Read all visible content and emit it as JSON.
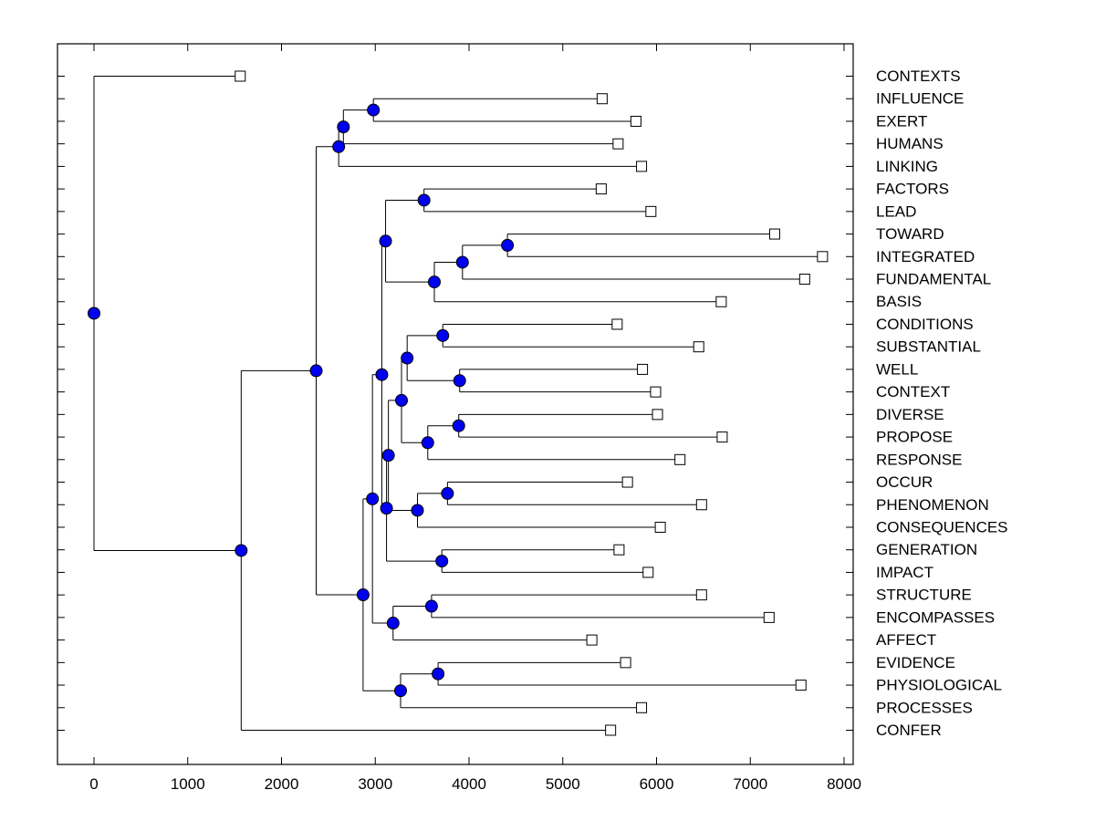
{
  "figure": {
    "background": "#ffffff",
    "axis_color": "#000000",
    "line_color": "#000000",
    "node_marker": {
      "shape": "circle",
      "fill": "#0000f0",
      "stroke": "#000000",
      "radius": 6.5
    },
    "leaf_marker": {
      "shape": "square",
      "fill": "#ffffff",
      "stroke": "#000000",
      "size": 11
    }
  },
  "chart_data": {
    "type": "dendrogram",
    "orientation": "horizontal-left-root",
    "title": "",
    "xlabel": "",
    "ylabel": "",
    "grid": false,
    "xlim": [
      -390,
      8100
    ],
    "x_ticks": [
      0,
      1000,
      2000,
      3000,
      4000,
      5000,
      6000,
      7000,
      8000
    ],
    "x_tick_labels": [
      "0",
      "1000",
      "2000",
      "3000",
      "4000",
      "5000",
      "6000",
      "7000",
      "8000"
    ],
    "leaves": [
      {
        "label": "CONTEXTS",
        "x": 1560
      },
      {
        "label": "INFLUENCE",
        "x": 5420
      },
      {
        "label": "EXERT",
        "x": 5780
      },
      {
        "label": "HUMANS",
        "x": 5590
      },
      {
        "label": "LINKING",
        "x": 5840
      },
      {
        "label": "FACTORS",
        "x": 5410
      },
      {
        "label": "LEAD",
        "x": 5940
      },
      {
        "label": "TOWARD",
        "x": 7260
      },
      {
        "label": "INTEGRATED",
        "x": 7770
      },
      {
        "label": "FUNDAMENTAL",
        "x": 7580
      },
      {
        "label": "BASIS",
        "x": 6690
      },
      {
        "label": "CONDITIONS",
        "x": 5580
      },
      {
        "label": "SUBSTANTIAL",
        "x": 6450
      },
      {
        "label": "WELL",
        "x": 5850
      },
      {
        "label": "CONTEXT",
        "x": 5990
      },
      {
        "label": "DIVERSE",
        "x": 6010
      },
      {
        "label": "PROPOSE",
        "x": 6700
      },
      {
        "label": "RESPONSE",
        "x": 6250
      },
      {
        "label": "OCCUR",
        "x": 5690
      },
      {
        "label": "PHENOMENON",
        "x": 6480
      },
      {
        "label": "CONSEQUENCES",
        "x": 6040
      },
      {
        "label": "GENERATION",
        "x": 5600
      },
      {
        "label": "IMPACT",
        "x": 5910
      },
      {
        "label": "STRUCTURE",
        "x": 6480
      },
      {
        "label": "ENCOMPASSES",
        "x": 7200
      },
      {
        "label": "AFFECT",
        "x": 5310
      },
      {
        "label": "EVIDENCE",
        "x": 5670
      },
      {
        "label": "PHYSIOLOGICAL",
        "x": 7540
      },
      {
        "label": "PROCESSES",
        "x": 5840
      },
      {
        "label": "CONFER",
        "x": 5510
      }
    ],
    "internal_nodes": [
      {
        "id": "n_influence_exert",
        "x": 2980,
        "children": [
          "INFLUENCE",
          "EXERT"
        ]
      },
      {
        "id": "n_humans",
        "x": 2660,
        "children": [
          "n_influence_exert",
          "HUMANS"
        ]
      },
      {
        "id": "n_linking",
        "x": 2610,
        "children": [
          "n_humans",
          "LINKING"
        ]
      },
      {
        "id": "n_factors_lead",
        "x": 3520,
        "children": [
          "FACTORS",
          "LEAD"
        ]
      },
      {
        "id": "n_toward_integrated",
        "x": 4410,
        "children": [
          "TOWARD",
          "INTEGRATED"
        ]
      },
      {
        "id": "n_fundamental",
        "x": 3930,
        "children": [
          "n_toward_integrated",
          "FUNDAMENTAL"
        ]
      },
      {
        "id": "n_basis",
        "x": 3630,
        "children": [
          "n_fundamental",
          "BASIS"
        ]
      },
      {
        "id": "n_factors_basis",
        "x": 3110,
        "children": [
          "n_factors_lead",
          "n_basis"
        ]
      },
      {
        "id": "n_conditions_substantial",
        "x": 3720,
        "children": [
          "CONDITIONS",
          "SUBSTANTIAL"
        ]
      },
      {
        "id": "n_well_context",
        "x": 3900,
        "children": [
          "WELL",
          "CONTEXT"
        ]
      },
      {
        "id": "n_cond_context",
        "x": 3340,
        "children": [
          "n_conditions_substantial",
          "n_well_context"
        ]
      },
      {
        "id": "n_diverse_propose",
        "x": 3890,
        "children": [
          "DIVERSE",
          "PROPOSE"
        ]
      },
      {
        "id": "n_response",
        "x": 3560,
        "children": [
          "n_diverse_propose",
          "RESPONSE"
        ]
      },
      {
        "id": "n_cond_response",
        "x": 3280,
        "children": [
          "n_cond_context",
          "n_response"
        ]
      },
      {
        "id": "n_occur_phenomenon",
        "x": 3770,
        "children": [
          "OCCUR",
          "PHENOMENON"
        ]
      },
      {
        "id": "n_consequences",
        "x": 3450,
        "children": [
          "n_occur_phenomenon",
          "CONSEQUENCES"
        ]
      },
      {
        "id": "n_cond_consequences",
        "x": 3140,
        "children": [
          "n_cond_response",
          "n_consequences"
        ]
      },
      {
        "id": "n_generation_impact",
        "x": 3710,
        "children": [
          "GENERATION",
          "IMPACT"
        ]
      },
      {
        "id": "n_cond_impact",
        "x": 3120,
        "children": [
          "n_cond_consequences",
          "n_generation_impact"
        ]
      },
      {
        "id": "n_factors_impact",
        "x": 3070,
        "children": [
          "n_factors_basis",
          "n_cond_impact"
        ]
      },
      {
        "id": "n_structure_encompasses",
        "x": 3600,
        "children": [
          "STRUCTURE",
          "ENCOMPASSES"
        ]
      },
      {
        "id": "n_affect",
        "x": 3190,
        "children": [
          "n_structure_encompasses",
          "AFFECT"
        ]
      },
      {
        "id": "n_factors_affect",
        "x": 2970,
        "children": [
          "n_factors_impact",
          "n_affect"
        ]
      },
      {
        "id": "n_evidence_physiological",
        "x": 3670,
        "children": [
          "EVIDENCE",
          "PHYSIOLOGICAL"
        ]
      },
      {
        "id": "n_processes",
        "x": 3270,
        "children": [
          "n_evidence_physiological",
          "PROCESSES"
        ]
      },
      {
        "id": "n_mid",
        "x": 2870,
        "children": [
          "n_factors_affect",
          "n_processes"
        ]
      },
      {
        "id": "n_upper",
        "x": 2370,
        "children": [
          "n_linking",
          "n_mid"
        ]
      },
      {
        "id": "n_confer",
        "x": 1570,
        "children": [
          "n_upper",
          "CONFER"
        ]
      },
      {
        "id": "root",
        "x": 0,
        "children": [
          "CONTEXTS",
          "n_confer"
        ]
      }
    ],
    "root_id": "root"
  }
}
